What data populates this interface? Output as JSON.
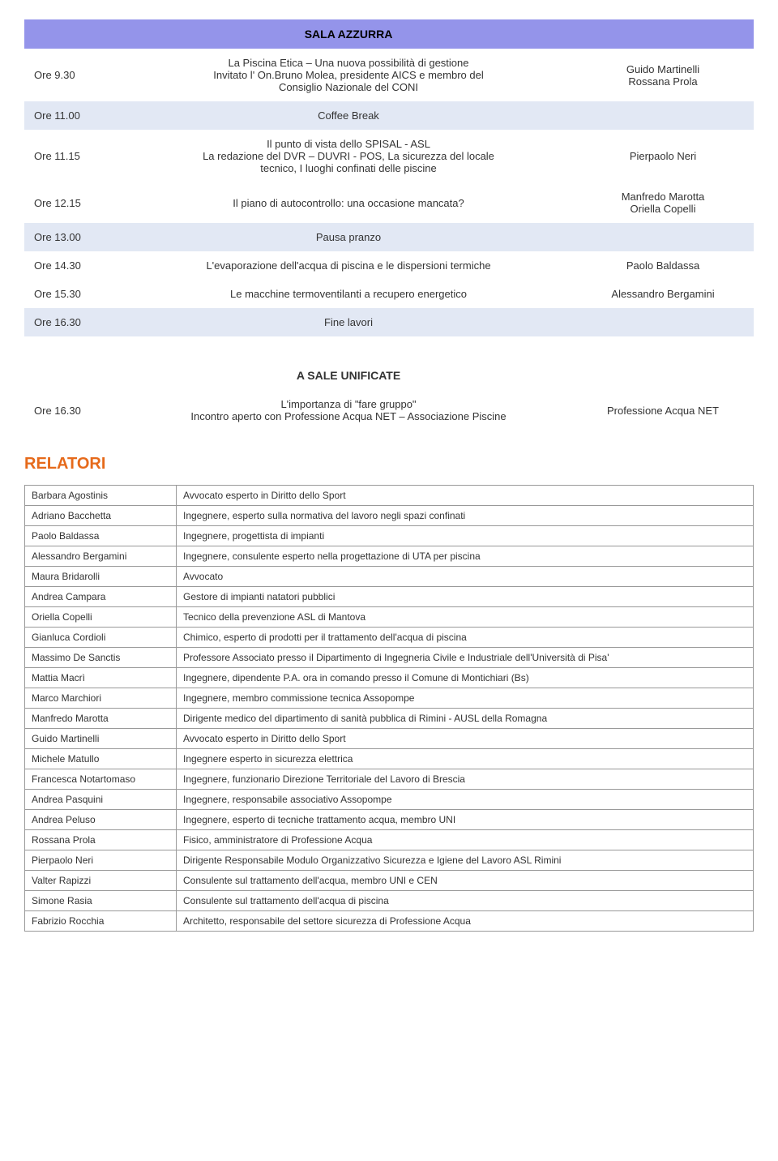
{
  "schedule_header": "SALA  AZZURRA",
  "rows": [
    {
      "time": "Ore 9.30",
      "desc": "La Piscina Etica – Una nuova possibilità di gestione\nInvitato l' On.Bruno Molea, presidente AICS e membro del\nConsiglio Nazionale del CONI",
      "speaker": "Guido Martinelli\nRossana Prola",
      "break": false
    },
    {
      "time": "Ore 11.00",
      "desc": "Coffee Break",
      "speaker": "",
      "break": true
    },
    {
      "time": "Ore 11.15",
      "desc": "Il punto di vista dello SPISAL - ASL\nLa redazione del DVR – DUVRI - POS, La sicurezza del locale\ntecnico, I luoghi confinati delle piscine",
      "speaker": "Pierpaolo Neri",
      "break": false
    },
    {
      "time": "Ore 12.15",
      "desc": "Il piano di autocontrollo: una occasione mancata?",
      "speaker": "Manfredo Marotta\nOriella Copelli",
      "break": false
    },
    {
      "time": "Ore 13.00",
      "desc": "Pausa pranzo",
      "speaker": "",
      "break": true
    },
    {
      "time": "Ore 14.30",
      "desc": "L'evaporazione dell'acqua di piscina e le dispersioni termiche",
      "speaker": "Paolo Baldassa",
      "break": false
    },
    {
      "time": "Ore 15.30",
      "desc": "Le macchine termoventilanti a recupero energetico",
      "speaker": "Alessandro Bergamini",
      "break": false
    },
    {
      "time": "Ore 16.30",
      "desc": "Fine lavori",
      "speaker": "",
      "break": true
    }
  ],
  "unified_header": "A SALE UNIFICATE",
  "unified_row": {
    "time": "Ore 16.30",
    "desc": "L'importanza di \"fare gruppo\"\nIncontro aperto con Professione Acqua NET – Associazione Piscine",
    "speaker": "Professione Acqua NET"
  },
  "relatori_heading": "RELATORI",
  "relatori": [
    {
      "name": "Barbara Agostinis",
      "role": "Avvocato esperto in Diritto dello Sport"
    },
    {
      "name": "Adriano Bacchetta",
      "role": "Ingegnere, esperto sulla normativa del lavoro negli spazi confinati"
    },
    {
      "name": "Paolo Baldassa",
      "role": "Ingegnere, progettista di impianti"
    },
    {
      "name": "Alessandro Bergamini",
      "role": "Ingegnere, consulente esperto nella progettazione di UTA per piscina"
    },
    {
      "name": "Maura Bridarolli",
      "role": "Avvocato"
    },
    {
      "name": "Andrea Campara",
      "role": "Gestore di impianti natatori pubblici"
    },
    {
      "name": "Oriella Copelli",
      "role": "Tecnico della prevenzione ASL di Mantova"
    },
    {
      "name": "Gianluca Cordioli",
      "role": "Chimico, esperto di prodotti per il trattamento dell'acqua di piscina"
    },
    {
      "name": "Massimo De Sanctis",
      "role": "Professore Associato presso il Dipartimento di Ingegneria Civile e Industriale dell'Università di Pisa'"
    },
    {
      "name": "Mattia Macrì",
      "role": "Ingegnere, dipendente P.A. ora in comando presso il Comune di Montichiari (Bs)"
    },
    {
      "name": "Marco Marchiori",
      "role": "Ingegnere, membro commissione tecnica Assopompe"
    },
    {
      "name": "Manfredo Marotta",
      "role": "Dirigente medico  del  dipartimento di sanità pubblica di Rimini - AUSL della Romagna"
    },
    {
      "name": "Guido Martinelli",
      "role": "Avvocato esperto in Diritto dello Sport"
    },
    {
      "name": "Michele Matullo",
      "role": "Ingegnere esperto in sicurezza elettrica"
    },
    {
      "name": "Francesca Notartomaso",
      "role": "Ingegnere, funzionario Direzione Territoriale del Lavoro di Brescia"
    },
    {
      "name": "Andrea Pasquini",
      "role": "Ingegnere, responsabile associativo Assopompe"
    },
    {
      "name": "Andrea Peluso",
      "role": "Ingegnere, esperto di tecniche trattamento acqua, membro UNI"
    },
    {
      "name": "Rossana Prola",
      "role": "Fisico, amministratore di Professione Acqua"
    },
    {
      "name": "Pierpaolo Neri",
      "role": "Dirigente Responsabile Modulo Organizzativo Sicurezza e Igiene del Lavoro ASL Rimini"
    },
    {
      "name": "Valter Rapizzi",
      "role": "Consulente sul trattamento dell'acqua, membro UNI e CEN"
    },
    {
      "name": "Simone Rasia",
      "role": "Consulente sul trattamento dell'acqua di piscina"
    },
    {
      "name": "Fabrizio Rocchia",
      "role": "Architetto, responsabile del settore sicurezza di Professione Acqua"
    }
  ],
  "colors": {
    "header_bg": "#9494ea",
    "break_bg": "#e2e8f4",
    "relatori_heading": "#e66a1b",
    "border": "#999999"
  }
}
